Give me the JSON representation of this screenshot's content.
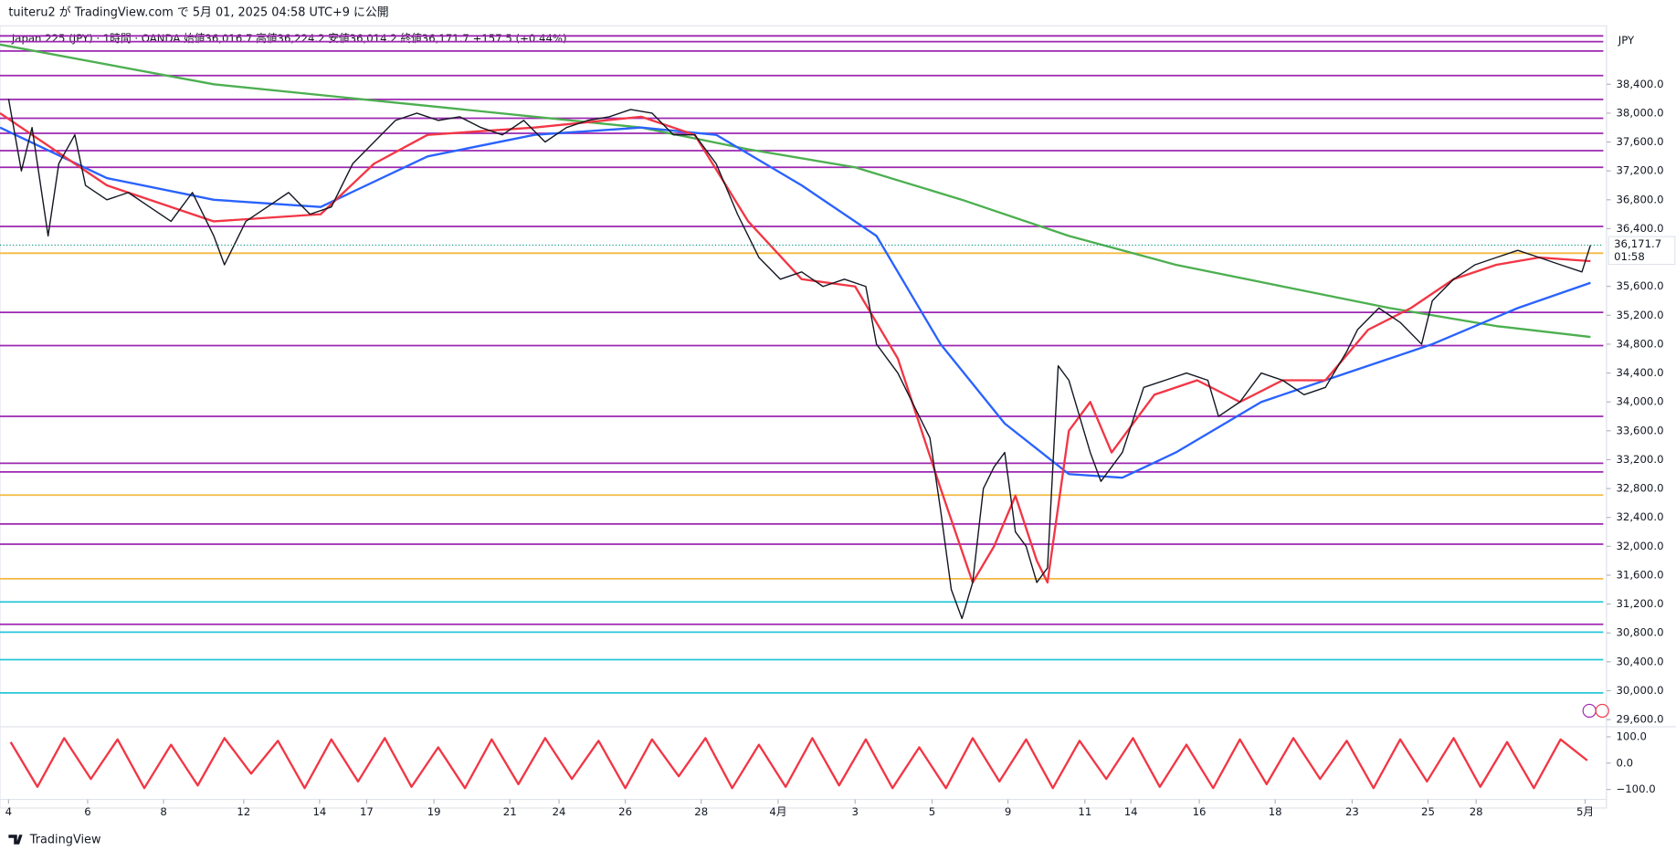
{
  "header": "tuiteru2 が TradingView.com で 5月 01, 2025 04:58 UTC+9 に公開",
  "footer": "TradingView",
  "chart_data": [
    {
      "type": "line",
      "title": "Japan 225 (JPY) · 1時間 · OANDA  始値36,016.7  高値36,224.2  安値36,014.2  終値36,171.7  +157.5 (+0.44%)",
      "currency": "JPY",
      "last_value": 36171.7,
      "last_value_label": "36,171.7",
      "countdown": "01:58",
      "xlim": [
        0,
        150
      ],
      "xticks": [
        {
          "value": 0.8,
          "label": "4"
        },
        {
          "value": 8.2,
          "label": "6"
        },
        {
          "value": 15.3,
          "label": "8"
        },
        {
          "value": 22.8,
          "label": "12"
        },
        {
          "value": 29.9,
          "label": "14"
        },
        {
          "value": 34.3,
          "label": "17"
        },
        {
          "value": 40.6,
          "label": "19"
        },
        {
          "value": 47.7,
          "label": "21"
        },
        {
          "value": 52.3,
          "label": "24"
        },
        {
          "value": 58.5,
          "label": "26"
        },
        {
          "value": 65.6,
          "label": "28"
        },
        {
          "value": 72.8,
          "label": "4月"
        },
        {
          "value": 80,
          "label": "3"
        },
        {
          "value": 87.2,
          "label": "5"
        },
        {
          "value": 94.3,
          "label": "9"
        },
        {
          "value": 101.5,
          "label": "11"
        },
        {
          "value": 105.8,
          "label": "14"
        },
        {
          "value": 112.2,
          "label": "16"
        },
        {
          "value": 119.3,
          "label": "18"
        },
        {
          "value": 126.5,
          "label": "23"
        },
        {
          "value": 133.6,
          "label": "25"
        },
        {
          "value": 138.1,
          "label": "28"
        },
        {
          "value": 148.3,
          "label": "5月"
        }
      ],
      "ylim": [
        29500,
        39150
      ],
      "yticks": [
        {
          "value": 29600,
          "label": "29,600.0"
        },
        {
          "value": 30000,
          "label": "30,000.0"
        },
        {
          "value": 30400,
          "label": "30,400.0"
        },
        {
          "value": 30800,
          "label": "30,800.0"
        },
        {
          "value": 31200,
          "label": "31,200.0"
        },
        {
          "value": 31600,
          "label": "31,600.0"
        },
        {
          "value": 32000,
          "label": "32,000.0"
        },
        {
          "value": 32400,
          "label": "32,400.0"
        },
        {
          "value": 32800,
          "label": "32,800.0"
        },
        {
          "value": 33200,
          "label": "33,200.0"
        },
        {
          "value": 33600,
          "label": "33,600.0"
        },
        {
          "value": 34000,
          "label": "34,000.0"
        },
        {
          "value": 34400,
          "label": "34,400.0"
        },
        {
          "value": 34800,
          "label": "34,800.0"
        },
        {
          "value": 35200,
          "label": "35,200.0"
        },
        {
          "value": 35600,
          "label": "35,600.0"
        },
        {
          "value": 36400,
          "label": "36,400.0"
        },
        {
          "value": 36800,
          "label": "36,800.0"
        },
        {
          "value": 37200,
          "label": "37,200.0"
        },
        {
          "value": 37600,
          "label": "37,600.0"
        },
        {
          "value": 38000,
          "label": "38,000.0"
        },
        {
          "value": 38400,
          "label": "38,400.0"
        }
      ],
      "levels": [
        {
          "value": 39070,
          "color": "#9c27b0"
        },
        {
          "value": 38990,
          "color": "#9c27b0"
        },
        {
          "value": 38860,
          "color": "#9c27b0"
        },
        {
          "value": 38520,
          "color": "#9c27b0"
        },
        {
          "value": 38190,
          "color": "#9c27b0"
        },
        {
          "value": 37930,
          "color": "#9c27b0"
        },
        {
          "value": 37720,
          "color": "#9c27b0"
        },
        {
          "value": 37480,
          "color": "#9c27b0"
        },
        {
          "value": 37250,
          "color": "#9c27b0"
        },
        {
          "value": 36430,
          "color": "#9c27b0"
        },
        {
          "value": 35240,
          "color": "#9c27b0"
        },
        {
          "value": 34780,
          "color": "#9c27b0"
        },
        {
          "value": 33800,
          "color": "#9c27b0"
        },
        {
          "value": 33150,
          "color": "#9c27b0"
        },
        {
          "value": 33030,
          "color": "#9c27b0"
        },
        {
          "value": 32310,
          "color": "#9c27b0"
        },
        {
          "value": 32030,
          "color": "#9c27b0"
        },
        {
          "value": 30920,
          "color": "#9c27b0"
        },
        {
          "value": 36060,
          "color": "#f5b942"
        },
        {
          "value": 32710,
          "color": "#f5b942"
        },
        {
          "value": 31550,
          "color": "#f5b942"
        },
        {
          "value": 31230,
          "color": "#26c6da"
        },
        {
          "value": 30810,
          "color": "#26c6da"
        },
        {
          "value": 30430,
          "color": "#26c6da"
        },
        {
          "value": 29970,
          "color": "#26c6da"
        }
      ],
      "series": [
        {
          "color": "#4caf50",
          "x": [
            0,
            20,
            40,
            60,
            70,
            80,
            90,
            100,
            110,
            120,
            130,
            140,
            148.8
          ],
          "values": [
            38950,
            38400,
            38100,
            37800,
            37500,
            37250,
            36800,
            36300,
            35900,
            35600,
            35300,
            35050,
            34900
          ]
        },
        {
          "color": "#2962ff",
          "x": [
            0,
            10,
            20,
            30,
            40,
            50,
            60,
            67,
            75,
            82,
            88,
            94,
            100,
            105,
            110,
            118,
            126,
            134,
            142,
            148.8
          ],
          "values": [
            37800,
            37100,
            36800,
            36700,
            37400,
            37700,
            37800,
            37700,
            37000,
            36300,
            34800,
            33700,
            33000,
            32950,
            33300,
            34000,
            34400,
            34800,
            35300,
            35650
          ]
        },
        {
          "color": "#f23645",
          "x": [
            0,
            10,
            20,
            30,
            35,
            40,
            50,
            60,
            65,
            70,
            75,
            80,
            84,
            88,
            91,
            93,
            95,
            97,
            98,
            100,
            102,
            104,
            108,
            112,
            116,
            120,
            124,
            128,
            132,
            136,
            140,
            144,
            148.8
          ],
          "values": [
            38000,
            37000,
            36500,
            36600,
            37300,
            37700,
            37800,
            37950,
            37700,
            36500,
            35700,
            35600,
            34600,
            32800,
            31500,
            32000,
            32700,
            31800,
            31500,
            33600,
            34000,
            33300,
            34100,
            34300,
            34000,
            34300,
            34300,
            35000,
            35300,
            35700,
            35900,
            36000,
            35950
          ]
        },
        {
          "color": "#131722",
          "x": [
            0.8,
            2,
            3,
            4.5,
            5.5,
            7,
            8,
            10,
            12,
            14,
            16,
            18,
            20,
            21,
            23,
            25,
            27,
            29,
            31,
            33,
            35,
            37,
            39,
            41,
            43,
            45,
            47,
            49,
            51,
            53,
            55,
            57,
            59,
            61,
            63,
            65,
            67,
            69,
            71,
            73,
            75,
            77,
            79,
            81,
            82,
            84,
            86,
            87,
            88,
            89,
            90,
            91,
            92,
            93,
            94,
            95,
            96,
            97,
            98,
            99,
            100,
            101,
            102,
            103,
            105,
            107,
            109,
            111,
            113,
            114,
            116,
            118,
            120,
            122,
            124,
            126,
            127,
            129,
            131,
            133,
            134,
            136,
            138,
            140,
            142,
            144,
            146,
            148,
            148.8
          ],
          "values": [
            38200,
            37200,
            37800,
            36300,
            37300,
            37700,
            37000,
            36800,
            36900,
            36700,
            36500,
            36900,
            36300,
            35900,
            36500,
            36700,
            36900,
            36600,
            36700,
            37300,
            37600,
            37900,
            38000,
            37900,
            37950,
            37800,
            37700,
            37900,
            37600,
            37800,
            37900,
            37950,
            38050,
            38000,
            37700,
            37700,
            37300,
            36600,
            36000,
            35700,
            35800,
            35600,
            35700,
            35600,
            34800,
            34400,
            33800,
            33500,
            32500,
            31400,
            31000,
            31500,
            32800,
            33100,
            33300,
            32200,
            32000,
            31500,
            31700,
            34500,
            34300,
            33800,
            33300,
            32900,
            33300,
            34200,
            34300,
            34400,
            34300,
            33800,
            34000,
            34400,
            34300,
            34100,
            34200,
            34700,
            35000,
            35300,
            35100,
            34800,
            35400,
            35700,
            35900,
            36000,
            36100,
            36000,
            35900,
            35800,
            36171.7
          ]
        }
      ]
    },
    {
      "type": "line",
      "ylim": [
        -130,
        130
      ],
      "yticks": [
        {
          "value": -100,
          "label": "−100.0"
        },
        {
          "value": 0,
          "label": "0.0"
        },
        {
          "value": 100,
          "label": "100.0"
        }
      ],
      "series": [
        {
          "color": "#f23645",
          "x": [
            1,
            3.5,
            6,
            8.5,
            11,
            13.5,
            16,
            18.5,
            21,
            23.5,
            26,
            28.5,
            31,
            33.5,
            36,
            38.5,
            41,
            43.5,
            46,
            48.5,
            51,
            53.5,
            56,
            58.5,
            61,
            63.5,
            66,
            68.5,
            71,
            73.5,
            76,
            78.5,
            81,
            83.5,
            86,
            88.5,
            91,
            93.5,
            96,
            98.5,
            101,
            103.5,
            106,
            108.5,
            111,
            113.5,
            116,
            118.5,
            121,
            123.5,
            126,
            128.5,
            131,
            133.5,
            136,
            138.5,
            141,
            143.5,
            146,
            148.5
          ],
          "values": [
            80,
            -90,
            95,
            -60,
            90,
            -95,
            70,
            -85,
            95,
            -40,
            85,
            -95,
            90,
            -70,
            95,
            -90,
            60,
            -95,
            90,
            -80,
            95,
            -60,
            85,
            -95,
            90,
            -50,
            95,
            -95,
            70,
            -90,
            95,
            -85,
            90,
            -95,
            60,
            -95,
            95,
            -70,
            90,
            -95,
            85,
            -60,
            95,
            -90,
            70,
            -95,
            90,
            -80,
            95,
            -60,
            85,
            -95,
            90,
            -70,
            95,
            -90,
            80,
            -95,
            90,
            10
          ]
        }
      ]
    }
  ]
}
